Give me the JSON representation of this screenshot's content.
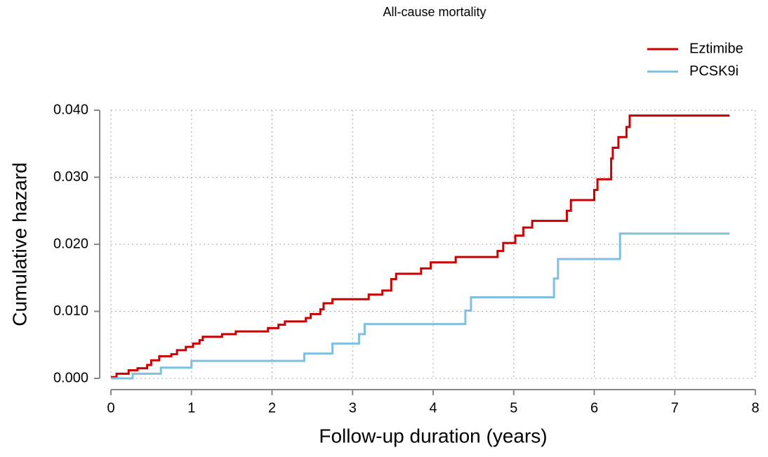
{
  "chart_data": {
    "type": "step",
    "title": "All-cause mortality",
    "x_label": "Follow-up duration (years)",
    "y_label": "Cumulative hazard",
    "xlim": [
      0,
      8
    ],
    "xticks": [
      0,
      1,
      2,
      3,
      4,
      5,
      6,
      7,
      8
    ],
    "ylim": [
      0,
      0.04
    ],
    "yticks": [
      {
        "value": 0,
        "label": "0.000"
      },
      {
        "value": 0.01,
        "label": "0.010"
      },
      {
        "value": 0.02,
        "label": "0.020"
      },
      {
        "value": 0.03,
        "label": "0.030"
      },
      {
        "value": 0.04,
        "label": "0.040"
      }
    ],
    "grid": true,
    "legend": "top-right",
    "series": [
      {
        "name": "Eztimibe",
        "color": "#cc0000",
        "x": [
          0,
          0.07,
          0.22,
          0.33,
          0.45,
          0.5,
          0.6,
          0.75,
          0.82,
          0.93,
          1.02,
          1.1,
          1.14,
          1.38,
          1.55,
          1.95,
          2.08,
          2.16,
          2.42,
          2.48,
          2.6,
          2.64,
          2.75,
          3.2,
          3.37,
          3.48,
          3.54,
          3.85,
          3.97,
          4.28,
          4.8,
          4.87,
          5.02,
          5.12,
          5.23,
          5.66,
          5.71,
          6.0,
          6.04,
          6.21,
          6.23,
          6.3,
          6.4,
          6.44,
          7.68
        ],
        "values": [
          0.0002,
          0.0007,
          0.0012,
          0.0015,
          0.002,
          0.0027,
          0.0033,
          0.0036,
          0.0042,
          0.0047,
          0.0052,
          0.0057,
          0.0062,
          0.0066,
          0.007,
          0.0075,
          0.008,
          0.0085,
          0.009,
          0.0096,
          0.0103,
          0.0112,
          0.0118,
          0.0125,
          0.0131,
          0.0148,
          0.0156,
          0.0164,
          0.0173,
          0.0181,
          0.019,
          0.0202,
          0.0213,
          0.0225,
          0.0235,
          0.025,
          0.0266,
          0.0281,
          0.0297,
          0.0328,
          0.0344,
          0.036,
          0.0375,
          0.0392,
          0.0392
        ]
      },
      {
        "name": "PCSK9i",
        "color": "#7fbfe0",
        "x": [
          0,
          0.27,
          0.62,
          1.0,
          2.4,
          2.75,
          3.08,
          3.15,
          4.4,
          4.47,
          5.5,
          5.55,
          6.32,
          7.68
        ],
        "values": [
          0,
          0.0007,
          0.0016,
          0.0026,
          0.0037,
          0.0052,
          0.0066,
          0.0081,
          0.0101,
          0.0121,
          0.0149,
          0.0178,
          0.0216,
          0.0216
        ]
      }
    ]
  }
}
